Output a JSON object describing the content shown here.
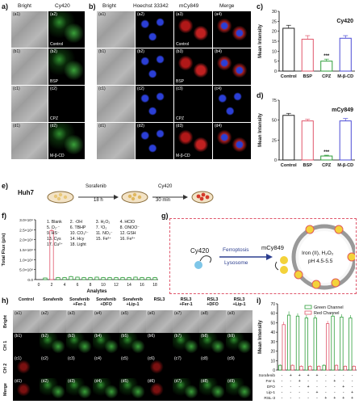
{
  "panel_labels": {
    "a": "a)",
    "b": "b)",
    "c": "c)",
    "d": "d)",
    "e": "e)",
    "f": "f)",
    "g": "g)",
    "h": "h)",
    "i": "i)"
  },
  "panel_a": {
    "col_heads": [
      "Bright",
      "Cy420"
    ],
    "rows": [
      {
        "tags": [
          "(a1)",
          "(a2)"
        ],
        "label": "Control"
      },
      {
        "tags": [
          "(b1)",
          "(b2)"
        ],
        "label": "BSP"
      },
      {
        "tags": [
          "(c1)",
          "(c2)"
        ],
        "label": "CPZ"
      },
      {
        "tags": [
          "(d1)",
          "(d2)"
        ],
        "label": "M-β-CD"
      }
    ]
  },
  "panel_b": {
    "col_heads": [
      "Bright",
      "Hoechst 33342",
      "mCy849",
      "Merge"
    ],
    "rows": [
      {
        "tags": [
          "(a1)",
          "(a2)",
          "(a3)",
          "(a4)"
        ],
        "label": "Control"
      },
      {
        "tags": [
          "(b1)",
          "(b2)",
          "(b3)",
          "(b4)"
        ],
        "label": "BSP"
      },
      {
        "tags": [
          "(c1)",
          "(c2)",
          "(c3)",
          "(c4)"
        ],
        "label": "CPZ"
      },
      {
        "tags": [
          "(d1)",
          "(d2)",
          "(d3)",
          "(d4)"
        ],
        "label": "M-β-CD"
      }
    ]
  },
  "panel_e": {
    "cell_line": "Huh7",
    "step1_top": "Sorafenib",
    "step1_bottom": "18 h",
    "step2_top": "Cy420",
    "step2_bottom": "30 min"
  },
  "panel_f_legend": [
    "1. Blank",
    "2. ·OH",
    "3. H₂O₂",
    "4. HClO",
    "5. O₂·⁻",
    "6. TBHP",
    "7. ¹O₂",
    "8. ONOO⁻",
    "9. HS⁻",
    "10. CO₃²⁻",
    "11. NO₂⁻",
    "12. GSH",
    "13. Cys",
    "14. Hcy",
    "15. Fe²⁺",
    "16. Fe³⁺",
    "17. Cu²⁺",
    "18. Light"
  ],
  "panel_g": {
    "probe": "Cy420",
    "product": "mCy849",
    "arrow_top": "Ferroptosis",
    "arrow_bottom": "Lysosome",
    "lyso_text1": "Iron (II), H₂O₂",
    "lyso_text2": "pH 4.5-5.5"
  },
  "panel_h": {
    "col_heads": [
      "Control",
      "Sorafenib",
      "Sorafenib\n+Fer-1",
      "Sorafenib\n+DFO",
      "Sorafenib\n+Lip-1",
      "RSL3",
      "RSL3\n+Fer-1",
      "RSL3\n+DFO",
      "RSL3\n+Lip-1"
    ],
    "row_heads": [
      "Bright",
      "CH 1",
      "CH 2",
      "Merge"
    ],
    "row_letters": [
      "a",
      "b",
      "c",
      "d"
    ]
  },
  "panel_i_rows": {
    "labels": [
      "Sorafenib",
      "Fer-1",
      "DFO",
      "Lip-1",
      "RSL-3"
    ],
    "signs": [
      [
        "-",
        "+",
        "+",
        "+",
        "+",
        "-",
        "-",
        "-",
        "-"
      ],
      [
        "-",
        "-",
        "+",
        "-",
        "-",
        "-",
        "+",
        "-",
        "-"
      ],
      [
        "-",
        "-",
        "-",
        "+",
        "-",
        "-",
        "-",
        "+",
        "-"
      ],
      [
        "-",
        "-",
        "-",
        "-",
        "+",
        "-",
        "-",
        "-",
        "+"
      ],
      [
        "-",
        "-",
        "-",
        "-",
        "-",
        "+",
        "+",
        "+",
        "+"
      ]
    ]
  },
  "colors": {
    "green": "#2e9e3a",
    "red": "#e0556a",
    "purple": "#4b4bd6",
    "gray": "#e0e0e0"
  },
  "chart_data": [
    {
      "id": "c",
      "type": "bar",
      "title": "Cy420",
      "ylabel": "Mean Intensity",
      "categories": [
        "Control",
        "BSP",
        "CPZ",
        "M-β-CD"
      ],
      "values": [
        21.5,
        16.0,
        5.0,
        16.5
      ],
      "errors": [
        1.5,
        1.8,
        1.0,
        1.3
      ],
      "colors": [
        "#222222",
        "#e0556a",
        "#2e9e3a",
        "#4b4bd6"
      ],
      "ylim": [
        0,
        30
      ],
      "yticks": [
        0,
        5,
        10,
        15,
        20,
        25,
        30
      ],
      "annotation": "***",
      "annotation_index": 2
    },
    {
      "id": "d",
      "type": "bar",
      "title": "mCy849",
      "ylabel": "Mean Intensity",
      "categories": [
        "Control",
        "BSP",
        "CPZ",
        "M-β-CD"
      ],
      "values": [
        56,
        49,
        5,
        49
      ],
      "errors": [
        2.5,
        2.0,
        1.0,
        3.0
      ],
      "colors": [
        "#222222",
        "#e0556a",
        "#2e9e3a",
        "#4b4bd6"
      ],
      "ylim": [
        0,
        75
      ],
      "yticks": [
        0,
        25,
        50,
        75
      ],
      "annotation": "***",
      "annotation_index": 2
    },
    {
      "id": "f",
      "type": "bar",
      "ylabel": "Total Flux (p/s)",
      "xlabel": "Analytes",
      "categories": [
        "0",
        "1",
        "2",
        "3",
        "4",
        "5",
        "6",
        "7",
        "8",
        "9",
        "10",
        "11",
        "12",
        "13",
        "14",
        "15",
        "16",
        "17",
        "18"
      ],
      "values": [
        0,
        0.08,
        2.45,
        0.1,
        0.1,
        0.15,
        0.12,
        0.1,
        0.1,
        0.12,
        0.1,
        0.1,
        0.1,
        0.1,
        0.1,
        0.12,
        0.1,
        0.1,
        0.1
      ],
      "errors": [
        0,
        0.02,
        0.1,
        0.03,
        0.03,
        0.04,
        0.03,
        0.03,
        0.03,
        0.03,
        0.03,
        0.03,
        0.03,
        0.03,
        0.03,
        0.03,
        0.03,
        0.03,
        0.03
      ],
      "ylim": [
        0,
        3.0
      ],
      "yticks": [
        "0.0",
        "5.0×10⁸",
        "1.0×10⁹",
        "1.5×10⁹",
        "2.0×10⁹",
        "2.5×10⁹",
        "3.0×10⁹"
      ],
      "xticks": [
        "0",
        "2",
        "4",
        "6",
        "8",
        "10",
        "12",
        "14",
        "16",
        "18"
      ],
      "highlight_index": 2,
      "highlight_color": "#e0556a",
      "bar_color": "#2e9e3a"
    },
    {
      "id": "i",
      "type": "bar",
      "ylabel": "Mean Intensity",
      "series": [
        {
          "name": "Green Channel",
          "color": "#2e9e3a",
          "values": [
            5,
            58,
            57,
            55,
            55,
            5,
            57,
            56,
            55
          ],
          "errors": [
            1,
            4,
            3,
            3,
            3,
            1,
            3,
            3,
            3
          ]
        },
        {
          "name": "Red Channel",
          "color": "#e0556a",
          "values": [
            48,
            5,
            4,
            4,
            4,
            49,
            5,
            4,
            4
          ],
          "errors": [
            3,
            1,
            1,
            1,
            1,
            3,
            1,
            1,
            1
          ]
        }
      ],
      "ylim": [
        0,
        70
      ],
      "yticks": [
        0,
        10,
        20,
        30,
        40,
        50,
        60,
        70
      ]
    }
  ]
}
